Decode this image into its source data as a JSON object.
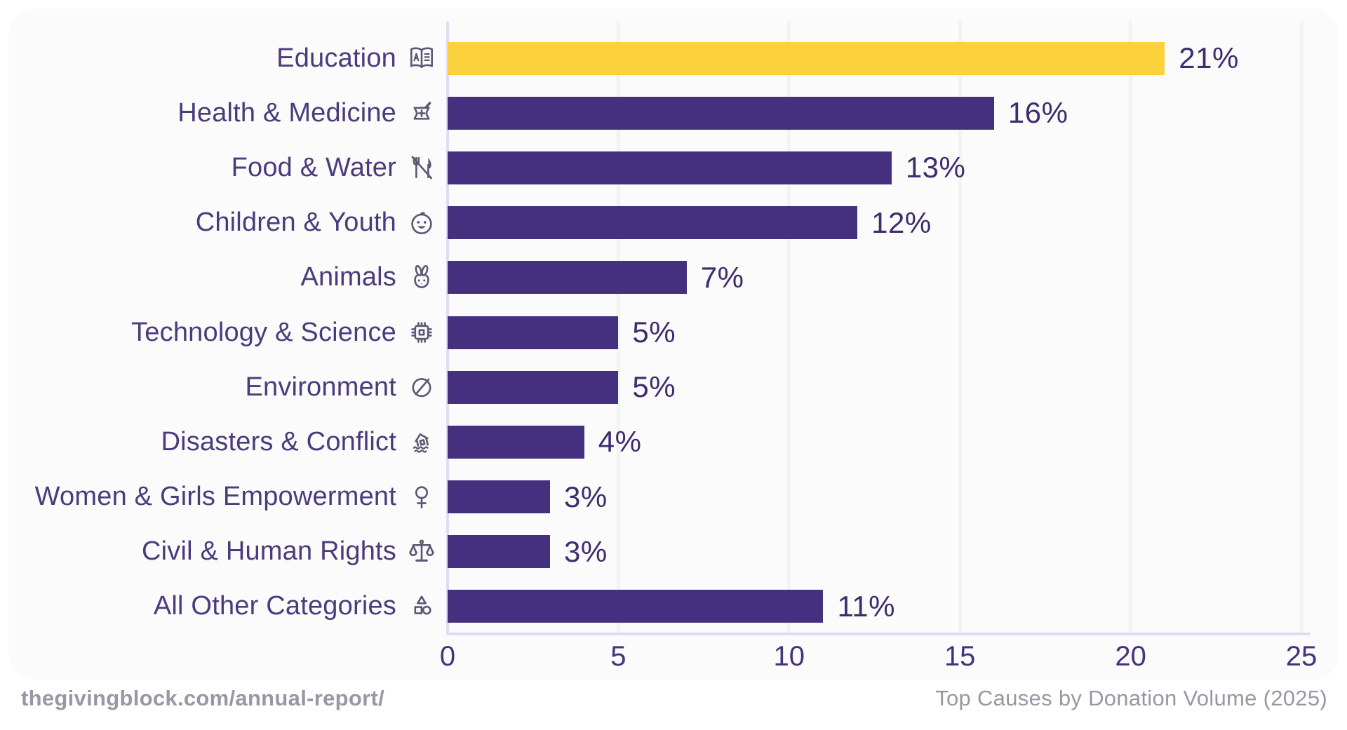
{
  "chart_data": {
    "type": "bar",
    "orientation": "horizontal",
    "title": "Top Causes by Donation Volume (2025)",
    "categories": [
      "Education",
      "Health & Medicine",
      "Food & Water",
      "Children & Youth",
      "Animals",
      "Technology & Science",
      "Environment",
      "Disasters & Conflict",
      "Women & Girls Empowerment",
      "Civil & Human Rights",
      "All Other Categories"
    ],
    "values": [
      21,
      16,
      13,
      12,
      7,
      5,
      5,
      4,
      3,
      3,
      11
    ],
    "value_labels": [
      "21%",
      "16%",
      "13%",
      "12%",
      "7%",
      "5%",
      "5%",
      "4%",
      "3%",
      "3%",
      "11%"
    ],
    "icons": [
      "book-icon",
      "mortar-pestle-icon",
      "utensils-slash-icon",
      "baby-smiley-icon",
      "rabbit-icon",
      "cpu-chip-icon",
      "leaf-icon",
      "flood-house-icon",
      "venus-icon",
      "scales-icon",
      "shapes-icon"
    ],
    "xlabel": "",
    "ylabel": "",
    "xlim": [
      0,
      25
    ],
    "x_ticks": [
      "0",
      "5",
      "10",
      "15",
      "20",
      "25"
    ],
    "grid": "faint-vertical",
    "legend": "none",
    "highlight_index": 0
  },
  "colors": {
    "bar_purple": "#44307f",
    "bar_yellow": "#fbd23c",
    "axis_lavender": "#e4daf6",
    "card_background": "#fafbfa",
    "label_purple": "#4c3b7c",
    "value_purple": "#3e2c6d",
    "tick_purple": "#46317d",
    "icon_gray_purple": "#5e5776",
    "footer_gray": "#9a96a3"
  },
  "footer": {
    "left": "thegivingblock.com/annual-report/",
    "right": "Top Causes by Donation Volume (2025)"
  }
}
